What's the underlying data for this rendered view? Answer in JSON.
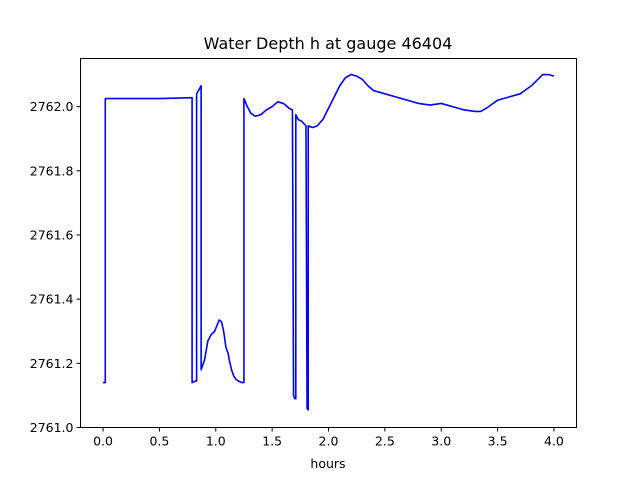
{
  "chart_data": {
    "type": "line",
    "title": "Water Depth h at gauge 46404",
    "xlabel": "hours",
    "ylabel": "",
    "xlim": [
      -0.2,
      4.2
    ],
    "ylim": [
      2761.0,
      2762.15
    ],
    "xticks": [
      0.0,
      0.5,
      1.0,
      1.5,
      2.0,
      2.5,
      3.0,
      3.5,
      4.0
    ],
    "xtick_labels": [
      "0.0",
      "0.5",
      "1.0",
      "1.5",
      "2.0",
      "2.5",
      "3.0",
      "3.5",
      "4.0"
    ],
    "yticks": [
      2761.0,
      2761.2,
      2761.4,
      2761.6,
      2761.8,
      2762.0
    ],
    "ytick_labels": [
      "2761.0",
      "2761.2",
      "2761.4",
      "2761.6",
      "2761.8",
      "2762.0"
    ],
    "grid": false,
    "series": [
      {
        "color": "#0000ff",
        "x": [
          0.0,
          0.02,
          0.02,
          0.5,
          0.78,
          0.79,
          0.79,
          0.82,
          0.83,
          0.83,
          0.87,
          0.87,
          0.9,
          0.93,
          0.96,
          0.99,
          1.03,
          1.05,
          1.07,
          1.09,
          1.11,
          1.12,
          1.14,
          1.16,
          1.18,
          1.2,
          1.23,
          1.25,
          1.25,
          1.28,
          1.31,
          1.35,
          1.4,
          1.45,
          1.5,
          1.55,
          1.6,
          1.65,
          1.68,
          1.69,
          1.69,
          1.7,
          1.71,
          1.71,
          1.73,
          1.76,
          1.8,
          1.81,
          1.82,
          1.82,
          1.86,
          1.9,
          1.95,
          2.0,
          2.05,
          2.1,
          2.15,
          2.2,
          2.25,
          2.3,
          2.35,
          2.4,
          2.45,
          2.5,
          2.6,
          2.7,
          2.8,
          2.9,
          3.0,
          3.1,
          3.2,
          3.3,
          3.35,
          3.4,
          3.5,
          3.6,
          3.7,
          3.8,
          3.9,
          3.95,
          4.0
        ],
        "y": [
          2761.14,
          2761.14,
          2762.025,
          2762.025,
          2762.028,
          2762.028,
          2761.14,
          2761.145,
          2761.145,
          2762.04,
          2762.065,
          2761.18,
          2761.21,
          2761.27,
          2761.29,
          2761.3,
          2761.335,
          2761.33,
          2761.3,
          2761.25,
          2761.23,
          2761.21,
          2761.18,
          2761.16,
          2761.15,
          2761.145,
          2761.14,
          2761.14,
          2762.025,
          2762.0,
          2761.98,
          2761.97,
          2761.975,
          2761.99,
          2762.0,
          2762.015,
          2762.01,
          2761.995,
          2761.99,
          2761.1,
          2761.1,
          2761.09,
          2761.09,
          2761.975,
          2761.96,
          2761.955,
          2761.94,
          2761.06,
          2761.055,
          2761.94,
          2761.935,
          2761.94,
          2761.96,
          2761.995,
          2762.03,
          2762.065,
          2762.09,
          2762.1,
          2762.095,
          2762.085,
          2762.065,
          2762.05,
          2762.045,
          2762.04,
          2762.03,
          2762.02,
          2762.01,
          2762.005,
          2762.01,
          2762.0,
          2761.99,
          2761.985,
          2761.985,
          2761.995,
          2762.02,
          2762.03,
          2762.04,
          2762.065,
          2762.1,
          2762.1,
          2762.095
        ]
      }
    ]
  }
}
